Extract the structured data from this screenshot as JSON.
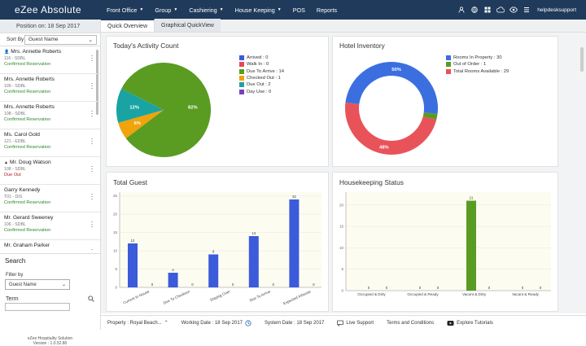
{
  "app": {
    "title": "eZee Absolute"
  },
  "nav": [
    {
      "label": "Front Office",
      "dropdown": true
    },
    {
      "label": "Group",
      "dropdown": true
    },
    {
      "label": "Cashiering",
      "dropdown": true
    },
    {
      "label": "House Keeping",
      "dropdown": true
    },
    {
      "label": "POS",
      "dropdown": false
    },
    {
      "label": "Reports",
      "dropdown": false
    }
  ],
  "top_icons": [
    "person-icon",
    "globe-icon",
    "grid-icon",
    "cloud-icon",
    "eye-icon",
    "list-icon"
  ],
  "user": {
    "name": "helpdesksupport"
  },
  "left": {
    "position": "Position on: 18 Sep 2017",
    "sort_label": "Sort By",
    "sort_value": "Guest Name",
    "guests": [
      {
        "name": "Mrs. Annette Roberts",
        "room": "116 - SDBL",
        "status": "Confirmed Reservation",
        "status_type": "ok",
        "icon": "person"
      },
      {
        "name": "Mrs. Annette Roberts",
        "room": "109 - SDBL",
        "status": "Confirmed Reservation",
        "status_type": "ok",
        "icon": ""
      },
      {
        "name": "Mrs. Annette Roberts",
        "room": "108 - SDBL",
        "status": "Confirmed Reservation",
        "status_type": "ok",
        "icon": ""
      },
      {
        "name": "Ms. Carol Gold",
        "room": "121 - EDBL",
        "status": "Confirmed Reservation",
        "status_type": "ok",
        "icon": ""
      },
      {
        "name": "Mr. Doug Watson",
        "room": "108 - SDBL",
        "status": "Due Out",
        "status_type": "out",
        "icon": "house"
      },
      {
        "name": "Garry Kennedy",
        "room": "T01 - DIS",
        "status": "Confirmed Reservation",
        "status_type": "ok",
        "icon": ""
      },
      {
        "name": "Mr. Gerard Sweeney",
        "room": "106 - SDBL",
        "status": "Confirmed Reservation",
        "status_type": "ok",
        "icon": ""
      },
      {
        "name": "Mr. Graham Parker",
        "room": "",
        "status": "",
        "status_type": "ok",
        "icon": ""
      }
    ],
    "search_title": "Search",
    "filter_label": "Filter by",
    "filter_value": "Guest Name",
    "term_label": "Term",
    "footer_line1": "eZee Hospitality Solution",
    "footer_line2": "Version : 1.0.52.80"
  },
  "tabs": [
    {
      "label": "Quick Overview",
      "active": true
    },
    {
      "label": "Graphical QuickView",
      "active": false
    }
  ],
  "activity": {
    "title": "Today's Activity Count",
    "legend": [
      {
        "label": "Arrived : 0",
        "color": "#3b5bdb"
      },
      {
        "label": "Walk In : 0",
        "color": "#e8475a"
      },
      {
        "label": "Due To Arrive : 14",
        "color": "#5a9c22"
      },
      {
        "label": "Checked Out : 1",
        "color": "#f0a30a"
      },
      {
        "label": "Due Out : 2",
        "color": "#1aa3a3"
      },
      {
        "label": "Day Use : 0",
        "color": "#7b3fbf"
      }
    ],
    "slices": [
      {
        "value": 14,
        "label": "82%",
        "color": "#5a9c22"
      },
      {
        "value": 1,
        "label": "6%",
        "color": "#f0a30a"
      },
      {
        "value": 2,
        "label": "12%",
        "color": "#1aa3a3"
      }
    ]
  },
  "inventory": {
    "title": "Hotel Inventory",
    "legend": [
      {
        "label": "Rooms In Property : 30",
        "color": "#3b6fe0"
      },
      {
        "label": "Out of Order : 1",
        "color": "#5a9c22"
      },
      {
        "label": "Total Rooms Available : 29",
        "color": "#e8535a"
      }
    ],
    "slices": [
      {
        "value": 50,
        "label": "50%",
        "color": "#3b6fe0"
      },
      {
        "value": 2,
        "label": "",
        "color": "#5a9c22"
      },
      {
        "value": 48,
        "label": "48%",
        "color": "#e8535a"
      }
    ]
  },
  "chart_data": [
    {
      "type": "bar",
      "title": "Total Guest",
      "categories": [
        "Current In House",
        "Due To Checkout",
        "Staying Over",
        "Due To Arrive",
        "Expected Inhouse"
      ],
      "series": [
        {
          "values": [
            12,
            4,
            9,
            14,
            24
          ],
          "color": "#3b5bdb"
        },
        {
          "values": [
            0,
            0,
            0,
            0,
            0
          ],
          "color": "#3b5bdb"
        }
      ],
      "yticks": [
        "0",
        "5",
        "10",
        "15",
        "20",
        "25"
      ],
      "ylim": [
        0,
        26
      ]
    },
    {
      "type": "bar",
      "title": "Housekeeping Status",
      "categories": [
        "Occupied & Dirty",
        "Occupied & Ready",
        "Vacant & Dirty",
        "Vacant & Ready"
      ],
      "series": [
        {
          "values": [
            0,
            0,
            21,
            0
          ],
          "color": "#5a9c22"
        },
        {
          "values": [
            0,
            0,
            0,
            0
          ],
          "color": "#5a9c22"
        }
      ],
      "yticks": [
        "0",
        "5",
        "10",
        "15",
        "20"
      ],
      "ylim": [
        0,
        23
      ]
    }
  ],
  "bottom": {
    "property": "Property : Royal Beach...",
    "working_date": "Working Date : 18 Sep 2017",
    "system_date": "System Date : 18 Sep 2017",
    "live_support": "Live Support",
    "terms": "Terms and Conditions",
    "tutorials": "Explore Tutorials"
  }
}
